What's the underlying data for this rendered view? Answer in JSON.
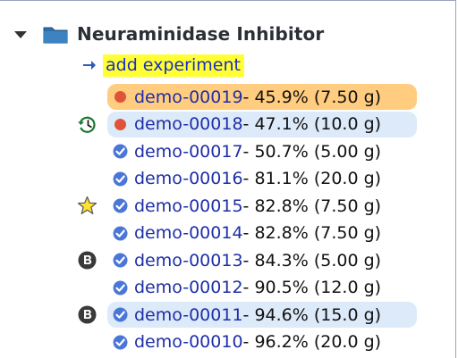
{
  "group": {
    "title": "Neuraminidase Inhibitor",
    "add_label": "add experiment"
  },
  "experiments": [
    {
      "id": "demo-00019",
      "detail": " - 45.9% (7.50 g)",
      "status": "running",
      "highlight": "orange",
      "marker": ""
    },
    {
      "id": "demo-00018",
      "detail": " - 47.1% (10.0 g)",
      "status": "running",
      "highlight": "blue",
      "marker": "history-icon"
    },
    {
      "id": "demo-00017",
      "detail": " - 50.7% (5.00 g)",
      "status": "done",
      "highlight": "",
      "marker": ""
    },
    {
      "id": "demo-00016",
      "detail": " - 81.1% (20.0 g)",
      "status": "done",
      "highlight": "",
      "marker": ""
    },
    {
      "id": "demo-00015",
      "detail": " - 82.8% (7.50 g)",
      "status": "done",
      "highlight": "",
      "marker": "star-icon"
    },
    {
      "id": "demo-00014",
      "detail": " - 82.8% (7.50 g)",
      "status": "done",
      "highlight": "",
      "marker": ""
    },
    {
      "id": "demo-00013",
      "detail": " - 84.3% (5.00 g)",
      "status": "done",
      "highlight": "",
      "marker": "b-badge-icon"
    },
    {
      "id": "demo-00012",
      "detail": " - 90.5% (12.0 g)",
      "status": "done",
      "highlight": "",
      "marker": ""
    },
    {
      "id": "demo-00011",
      "detail": " - 94.6% (15.0 g)",
      "status": "done",
      "highlight": "blue",
      "marker": "b-badge-icon"
    },
    {
      "id": "demo-00010",
      "detail": " - 96.2% (20.0 g)",
      "status": "done",
      "highlight": "",
      "marker": ""
    }
  ],
  "colors": {
    "link": "#1e2ea8",
    "highlight_orange": "#ffcc80",
    "highlight_blue": "#ddeaf9",
    "add_highlight": "#ffff33",
    "running_dot": "#e0533a",
    "done_check": "#4a76d8",
    "star": "#ffe033",
    "history": "#1a7a2e",
    "folder": "#2f6ea8"
  }
}
